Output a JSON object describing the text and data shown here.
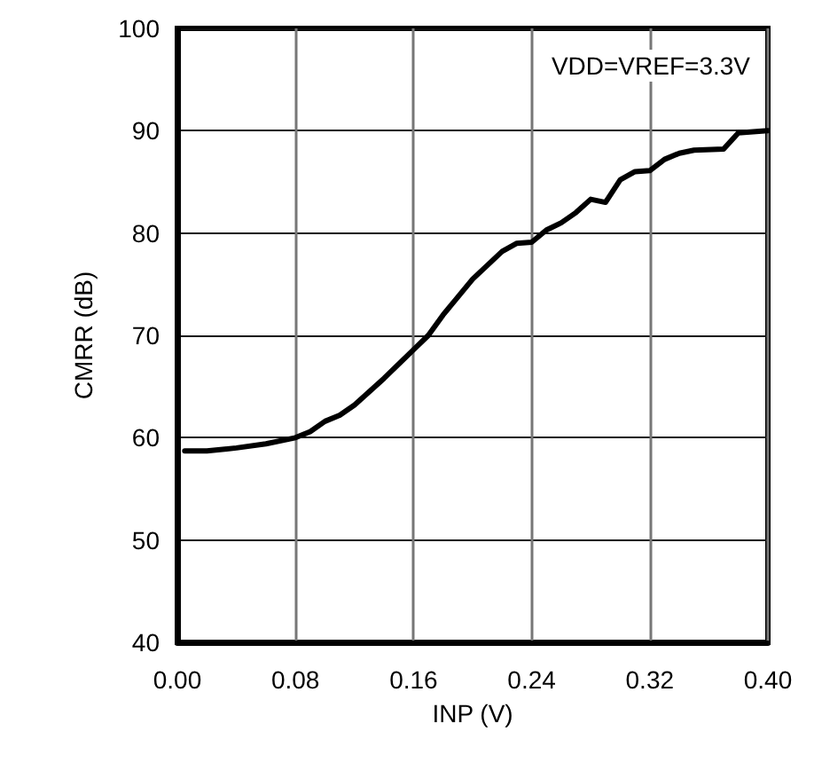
{
  "chart_data": {
    "type": "line",
    "xlabel": "INP (V)",
    "ylabel": "CMRR (dB)",
    "annotations": [
      "VDD=VREF=3.3V"
    ],
    "x": [
      0.005,
      0.02,
      0.04,
      0.06,
      0.08,
      0.09,
      0.1,
      0.11,
      0.12,
      0.14,
      0.16,
      0.17,
      0.18,
      0.2,
      0.22,
      0.23,
      0.24,
      0.25,
      0.26,
      0.27,
      0.28,
      0.29,
      0.3,
      0.31,
      0.32,
      0.33,
      0.34,
      0.35,
      0.37,
      0.38,
      0.4
    ],
    "series": [
      {
        "color": "#000000",
        "values": [
          58.7,
          58.7,
          59,
          59.4,
          60,
          60.6,
          61.6,
          62.2,
          63.2,
          65.8,
          68.6,
          70,
          72,
          75.5,
          78.2,
          79,
          79.1,
          80.3,
          81,
          82,
          83.3,
          83,
          85.2,
          86,
          86.1,
          87.2,
          87.8,
          88.1,
          88.2,
          89.8,
          90
        ]
      }
    ],
    "xlim": [
      0,
      0.4
    ],
    "xticks": [
      {
        "value": 0,
        "label": "0.00"
      },
      0.08,
      0.16,
      0.24,
      0.32,
      {
        "value": 0.4,
        "label": "0.40"
      }
    ],
    "ylim": [
      40,
      100
    ],
    "yticks": [
      40,
      50,
      60,
      70,
      80,
      90,
      100
    ],
    "grid": true,
    "marker": "none",
    "line_style": "solid"
  }
}
